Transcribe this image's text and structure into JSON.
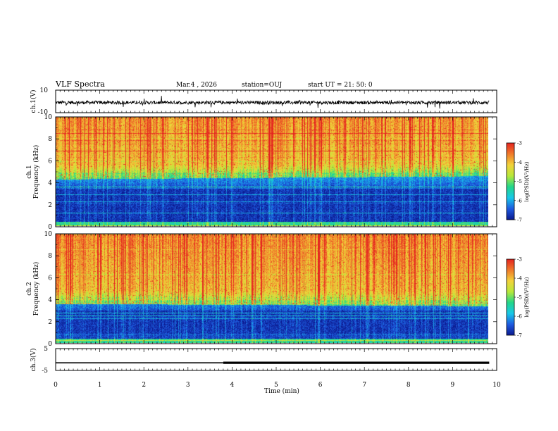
{
  "chart_data": {
    "type": "heatmap",
    "title": "VLF Spectra",
    "date": "Mar.4 , 2026",
    "station": "station=OUJ",
    "start_ut": "start UT =  21: 50: 0",
    "xlabel": "Time (min)",
    "xlim": [
      0,
      10
    ],
    "xticks": [
      "0",
      "1",
      "2",
      "3",
      "4",
      "5",
      "6",
      "7",
      "8",
      "9",
      "10"
    ],
    "ch1_waveform": {
      "ylabel": "ch.1(V)",
      "ylim": [
        -10,
        10
      ],
      "yticks": [
        "10",
        "-10"
      ],
      "baseline": -1,
      "noise": 1.5
    },
    "ch1_spectrogram": {
      "ylabel_line1": "ch.1",
      "ylabel_line2": "Frequency (kHz)",
      "ylim": [
        0,
        10
      ],
      "yticks": [
        "0",
        "2",
        "4",
        "6",
        "8",
        "10"
      ],
      "colorbar_label": "log(PSD)(V²/Hz)",
      "colorbar_range": [
        -7,
        -3
      ],
      "colorbar_ticks": [
        "-3",
        "-4",
        "-5",
        "-6",
        "-7"
      ],
      "noise_floor_khz_start": 4.3,
      "noise_floor_khz_end": 4.6,
      "quiet_band_khz": [
        0,
        3.5
      ]
    },
    "ch2_spectrogram": {
      "ylabel_line1": "ch.2",
      "ylabel_line2": "Frequency (kHz)",
      "ylim": [
        0,
        10
      ],
      "yticks": [
        "0",
        "2",
        "4",
        "6",
        "8",
        "10"
      ],
      "colorbar_label": "log(PSD)(V²/Hz)",
      "colorbar_range": [
        -7,
        -3
      ],
      "colorbar_ticks": [
        "-3",
        "-4",
        "-5",
        "-6",
        "-7"
      ],
      "noise_floor_khz_start": 3.6,
      "noise_floor_khz_end": 3.4,
      "quiet_band_khz": [
        0,
        3.0
      ]
    },
    "ch3_waveform": {
      "ylabel": "ch.3(V)",
      "ylim": [
        -5,
        5
      ],
      "yticks": [
        "5",
        "-5"
      ],
      "level": -1.5,
      "step_time_min": 3.8,
      "line_width_before": 1.6,
      "line_width_after": 3.2
    },
    "colors": {
      "axis": "#000000",
      "colormap": [
        "#0b1a8f",
        "#1e5ae0",
        "#18c8e8",
        "#22d68a",
        "#b8e83a",
        "#f2d23a",
        "#f07a2a",
        "#e42420"
      ]
    }
  }
}
